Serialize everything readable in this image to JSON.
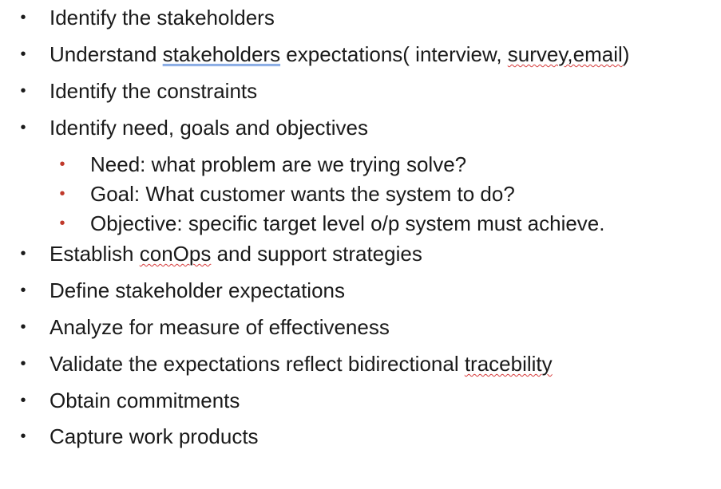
{
  "bullets": {
    "main_glyph": "•",
    "sub_glyph": "•",
    "sub_color": "#c0392b"
  },
  "items": [
    {
      "text": "Identify the stakeholders"
    },
    {
      "pre": "Understand ",
      "underline_blue": "stakeholders",
      "mid": " expectations( interview, ",
      "underline_red": "survey,email",
      "post": ")"
    },
    {
      "text": "Identify the constraints"
    },
    {
      "text": "Identify need, goals and objectives"
    },
    {
      "text": "Establish ",
      "underline_red": "conOps",
      "post": " and support strategies"
    },
    {
      "text": "Define stakeholder expectations"
    },
    {
      "text": "Analyze for measure of effectiveness"
    },
    {
      "text": "Validate the expectations reflect bidirectional ",
      "underline_red": "tracebility"
    },
    {
      "text": "Obtain commitments"
    },
    {
      "text": "Capture work products"
    }
  ],
  "sub_items": [
    "Need: what problem are we trying solve?",
    "Goal: What customer wants the system to do?",
    "Objective: specific target level o/p system must achieve."
  ]
}
